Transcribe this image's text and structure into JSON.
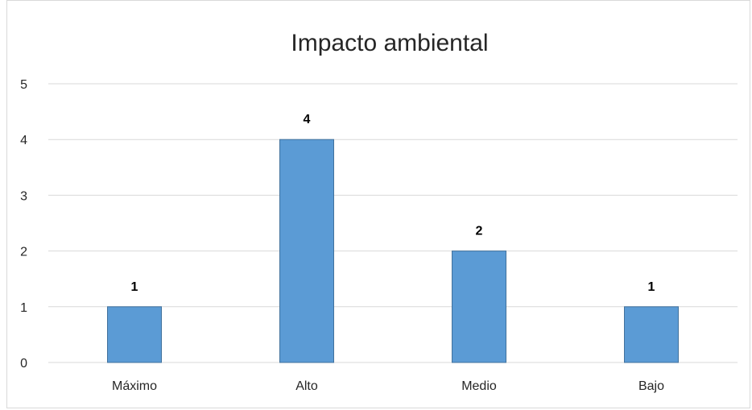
{
  "chart_data": {
    "type": "bar",
    "title": "Impacto ambiental",
    "categories": [
      "Máximo",
      "Alto",
      "Medio",
      "Bajo"
    ],
    "values": [
      1,
      4,
      2,
      1
    ],
    "data_labels": [
      "1",
      "4",
      "2",
      "1"
    ],
    "ylim": [
      0,
      5
    ],
    "yticks": [
      "0",
      "1",
      "2",
      "3",
      "4",
      "5"
    ],
    "xlabel": "",
    "ylabel": "",
    "grid": true,
    "legend": "none",
    "colors": {
      "bar": "#5b9bd5",
      "bar_edge": "#41719c",
      "grid": "#d9d9d9"
    }
  }
}
